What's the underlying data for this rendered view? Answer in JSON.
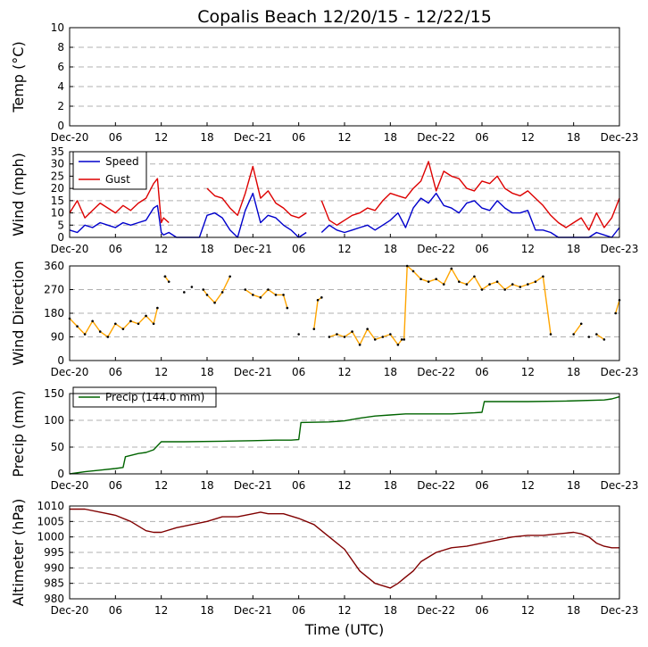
{
  "title": "Copalis Beach 12/20/15 - 12/22/15",
  "x_axis_label": "Time (UTC)",
  "x_ticks": [
    "Dec-20",
    "06",
    "12",
    "18",
    "Dec-21",
    "06",
    "12",
    "18",
    "Dec-22",
    "06",
    "12",
    "18",
    "Dec-23"
  ],
  "x_range_hours": [
    0,
    72
  ],
  "colors": {
    "speed": "#0000cc",
    "gust": "#dd0000",
    "direction": "#ffa500",
    "direction_marker": "#000000",
    "precip": "#006400",
    "altimeter": "#800000",
    "grid": "#b0b0b0"
  },
  "chart_data": [
    {
      "type": "line",
      "panel": "temperature",
      "ylabel": "Temp (°C)",
      "ylim": [
        0,
        10
      ],
      "yticks": [
        "0",
        "2",
        "4",
        "6",
        "8",
        "10"
      ],
      "grid": true,
      "series": []
    },
    {
      "type": "line",
      "panel": "wind",
      "ylabel": "Wind (mph)",
      "ylim": [
        0,
        35
      ],
      "yticks": [
        "0",
        "5",
        "10",
        "15",
        "20",
        "25",
        "30",
        "35"
      ],
      "grid": true,
      "legend": "top-left",
      "series": [
        {
          "name": "Speed",
          "x": [
            0,
            1,
            2,
            3,
            4,
            5,
            6,
            7,
            8,
            9,
            10,
            11,
            11.5,
            12,
            12.3,
            13,
            14,
            15,
            16,
            17,
            18,
            19,
            20,
            21,
            22,
            23,
            24,
            25,
            26,
            27,
            28,
            29,
            30,
            31,
            33,
            34,
            35,
            36,
            37,
            38,
            39,
            40,
            41,
            42,
            43,
            44,
            45,
            46,
            47,
            48,
            49,
            50,
            51,
            52,
            53,
            54,
            55,
            56,
            57,
            58,
            59,
            60,
            61,
            62,
            63,
            64,
            65,
            66,
            67,
            68,
            69,
            70,
            71,
            72
          ],
          "y": [
            3,
            2,
            5,
            4,
            6,
            5,
            4,
            6,
            5,
            6,
            7,
            12,
            13,
            2,
            1,
            2,
            0,
            0,
            0,
            0,
            9,
            10,
            8,
            3,
            0,
            11,
            18,
            6,
            9,
            8,
            5,
            3,
            0,
            2,
            2,
            5,
            3,
            2,
            3,
            4,
            5,
            3,
            5,
            7,
            10,
            4,
            12,
            16,
            14,
            18,
            13,
            12,
            10,
            14,
            15,
            12,
            11,
            15,
            12,
            10,
            10,
            11,
            3,
            3,
            2,
            0,
            0,
            0,
            0,
            0,
            2,
            1,
            0,
            4
          ],
          "gaps": [
            [
              32,
              33
            ]
          ]
        },
        {
          "name": "Gust",
          "x": [
            0,
            1,
            2,
            3,
            4,
            5,
            6,
            7,
            8,
            9,
            10,
            11,
            11.5,
            12,
            12.3,
            13,
            18,
            19,
            20,
            21,
            22,
            23,
            24,
            25,
            26,
            27,
            28,
            29,
            30,
            31,
            33,
            34,
            35,
            36,
            37,
            38,
            39,
            40,
            41,
            42,
            43,
            44,
            45,
            46,
            47,
            48,
            49,
            50,
            51,
            52,
            53,
            54,
            55,
            56,
            57,
            58,
            59,
            60,
            61,
            62,
            63,
            64,
            65,
            66,
            67,
            68,
            69,
            70,
            71,
            72
          ],
          "y": [
            10,
            15,
            8,
            11,
            14,
            12,
            10,
            13,
            11,
            14,
            16,
            22,
            24,
            6,
            8,
            6,
            20,
            17,
            16,
            12,
            9,
            18,
            29,
            16,
            19,
            14,
            12,
            9,
            8,
            10,
            15,
            7,
            5,
            7,
            9,
            10,
            12,
            11,
            15,
            18,
            17,
            16,
            20,
            23,
            31,
            19,
            27,
            25,
            24,
            20,
            19,
            23,
            22,
            25,
            20,
            18,
            17,
            19,
            16,
            13,
            9,
            6,
            4,
            6,
            8,
            3,
            10,
            4,
            8,
            16
          ],
          "gaps": [
            [
              13.5,
              17.5
            ],
            [
              32,
              33
            ]
          ]
        }
      ]
    },
    {
      "type": "line",
      "panel": "wind_direction",
      "ylabel": "Wind Direction",
      "ylim": [
        0,
        360
      ],
      "yticks": [
        "0",
        "90",
        "180",
        "270",
        "360"
      ],
      "grid": true,
      "series": [
        {
          "name": "Direction",
          "segments": [
            {
              "x": [
                0,
                1,
                2,
                3,
                4,
                5,
                6,
                7,
                8,
                9,
                10,
                11,
                11.5
              ],
              "y": [
                160,
                130,
                100,
                150,
                110,
                90,
                140,
                120,
                150,
                140,
                170,
                140,
                200
              ]
            },
            {
              "x": [
                12.5,
                13
              ],
              "y": [
                320,
                300
              ]
            },
            {
              "x": [
                17.5,
                18,
                19,
                20,
                21
              ],
              "y": [
                270,
                250,
                220,
                260,
                320
              ]
            },
            {
              "x": [
                23,
                24,
                25,
                26,
                27,
                28,
                28.5
              ],
              "y": [
                270,
                250,
                240,
                270,
                250,
                250,
                200
              ]
            },
            {
              "x": [
                32,
                32.5,
                33
              ],
              "y": [
                120,
                230,
                240
              ]
            },
            {
              "x": [
                34,
                35,
                36,
                37,
                38,
                39,
                40,
                41,
                42,
                43,
                43.5
              ],
              "y": [
                90,
                100,
                90,
                110,
                60,
                120,
                80,
                90,
                100,
                60,
                80
              ]
            },
            {
              "x": [
                43.8,
                44.2,
                45,
                46,
                47,
                48,
                49,
                50,
                51,
                52,
                53,
                54,
                55,
                56,
                57,
                58,
                59,
                60,
                61,
                62,
                63
              ],
              "y": [
                80,
                360,
                340,
                310,
                300,
                310,
                290,
                350,
                300,
                290,
                320,
                270,
                290,
                300,
                270,
                290,
                280,
                290,
                300,
                320,
                100
              ]
            },
            {
              "x": [
                66,
                67
              ],
              "y": [
                100,
                140
              ]
            },
            {
              "x": [
                69,
                70
              ],
              "y": [
                100,
                80
              ]
            },
            {
              "x": [
                71.5,
                72
              ],
              "y": [
                180,
                230
              ]
            }
          ],
          "points": [
            [
              12.5,
              320
            ],
            [
              15,
              260
            ],
            [
              16,
              280
            ],
            [
              30,
              100
            ],
            [
              68,
              90
            ]
          ]
        }
      ]
    },
    {
      "type": "line",
      "panel": "precip",
      "ylabel": "Precip (mm)",
      "ylim": [
        0,
        150
      ],
      "yticks": [
        "0",
        "50",
        "100",
        "150"
      ],
      "grid": true,
      "legend": "top-left",
      "series": [
        {
          "name": "Precip (144.0 mm)",
          "x": [
            0,
            2,
            4,
            6,
            7,
            7.3,
            9,
            10,
            11,
            12,
            15,
            20,
            24,
            27,
            29,
            30,
            30.3,
            34,
            36,
            38,
            40,
            42,
            44,
            50,
            53,
            54,
            54.3,
            60,
            65,
            70,
            71,
            72
          ],
          "y": [
            0,
            4,
            7,
            10,
            12,
            32,
            38,
            40,
            45,
            60,
            60,
            61,
            62,
            63,
            63,
            64,
            96,
            97,
            99,
            104,
            108,
            110,
            112,
            112,
            114,
            115,
            135,
            135,
            136,
            138,
            140,
            144
          ]
        }
      ]
    },
    {
      "type": "line",
      "panel": "altimeter",
      "ylabel": "Altimeter (hPa)",
      "ylim": [
        980,
        1010
      ],
      "yticks": [
        "980",
        "985",
        "990",
        "995",
        "1000",
        "1005",
        "1010"
      ],
      "grid": true,
      "series": [
        {
          "name": "Altimeter",
          "x": [
            0,
            2,
            4,
            6,
            8,
            10,
            11,
            12,
            14,
            16,
            18,
            20,
            22,
            24,
            25,
            26,
            28,
            30,
            32,
            34,
            36,
            38,
            40,
            42,
            43,
            44,
            45,
            46,
            48,
            50,
            52,
            54,
            56,
            58,
            60,
            62,
            64,
            66,
            67,
            68,
            69,
            70,
            71,
            72
          ],
          "y": [
            1009,
            1009,
            1008,
            1007,
            1005,
            1002,
            1001.5,
            1001.5,
            1003,
            1004,
            1005,
            1006.5,
            1006.5,
            1007.5,
            1008,
            1007.5,
            1007.5,
            1006,
            1004,
            1000,
            996,
            989,
            985,
            983.5,
            985,
            987,
            989,
            992,
            995,
            996.5,
            997,
            998,
            999,
            1000,
            1000.5,
            1000.5,
            1001,
            1001.5,
            1001,
            1000,
            998,
            997,
            996.5,
            996.5
          ]
        }
      ]
    }
  ]
}
